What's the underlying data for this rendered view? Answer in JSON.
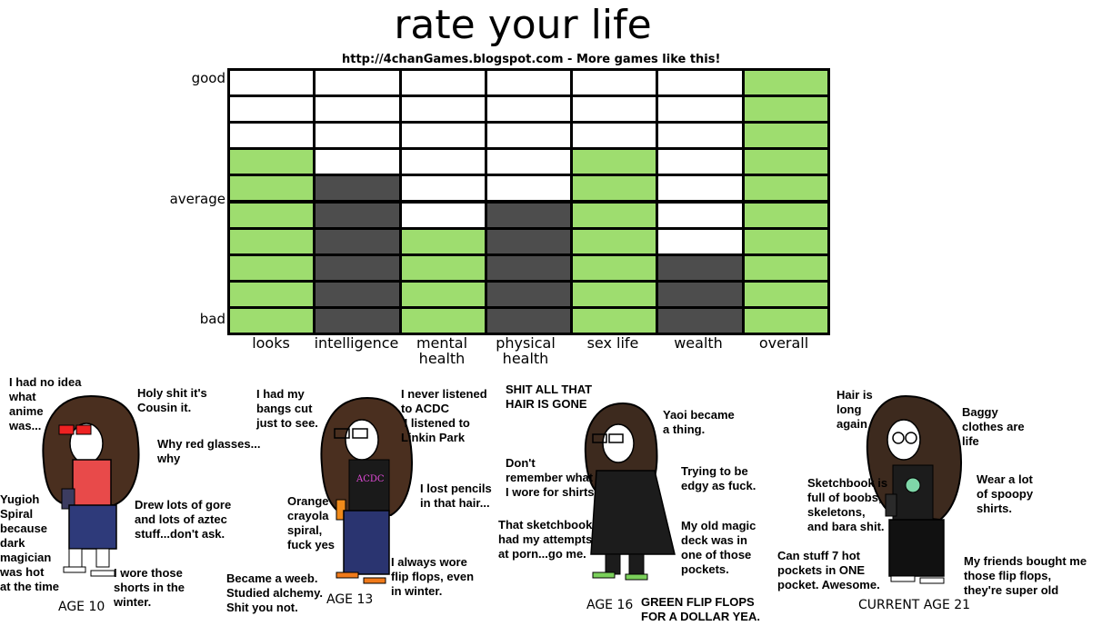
{
  "title": "rate your life",
  "subtitle": "http://4chanGames.blogspot.com - More games like this!",
  "colors": {
    "good": "#9edd6f",
    "bad": "#4d4d4d",
    "neutral": "#ffffff",
    "border": "#000000"
  },
  "chart_data": {
    "type": "heatmap",
    "title": "rate your life",
    "scale_labels": [
      "good",
      "average",
      "bad"
    ],
    "levels": 10,
    "categories": [
      "looks",
      "intelligence",
      "mental health",
      "physical health",
      "sex life",
      "wealth",
      "overall"
    ],
    "legend": {
      "green": "good",
      "dark gray": "bad",
      "white": "unfilled"
    },
    "columns": [
      {
        "name": "looks",
        "green": 7,
        "gray": 0
      },
      {
        "name": "intelligence",
        "green": 0,
        "gray": 6
      },
      {
        "name": "mental health",
        "green": 4,
        "gray": 0
      },
      {
        "name": "physical health",
        "green": 0,
        "gray": 5
      },
      {
        "name": "sex life",
        "green": 7,
        "gray": 0
      },
      {
        "name": "wealth",
        "green": 0,
        "gray": 3
      },
      {
        "name": "overall",
        "green": 10,
        "gray": 0
      }
    ]
  },
  "figures": [
    {
      "age_label": "AGE 10",
      "notes": [
        "I had no idea\nwhat\nanime\nwas...",
        "Holy shit it's\nCousin it.",
        "Why red glasses...\nwhy",
        "Drew lots of gore\nand lots of aztec\nstuff...don't ask.",
        "Yugioh\nSpiral\nbecause\ndark\nmagician\nwas hot\nat the time",
        "I wore those\nshorts in the\nwinter."
      ]
    },
    {
      "age_label": "AGE 13",
      "notes": [
        "I had my\nbangs cut\njust to see.",
        "I never listened\nto ACDC\n I listened to\nLinkin Park",
        "I lost pencils\nin that hair...",
        "Orange\ncrayola\nspiral,\nfuck yes",
        "Became a weeb.\nStudied alchemy.\nShit you not.",
        "I always wore\nflip flops, even\nin winter."
      ],
      "shirt_text": "ACDC"
    },
    {
      "age_label": "AGE 16",
      "notes": [
        "SHIT ALL THAT\nHAIR IS GONE",
        "Yaoi became\na thing.",
        "Don't\nremember what\nI wore for shirts",
        "Trying to be\nedgy as fuck.",
        "That sketchbook\nhad my attempts\nat porn...go me.",
        "My old magic\ndeck was in\none of those\npockets.",
        "GREEN FLIP FLOPS\nFOR A DOLLAR YEA."
      ]
    },
    {
      "age_label": "CURRENT AGE 21",
      "notes": [
        "Hair is\nlong\nagain",
        "Baggy\nclothes are\nlife",
        "Sketchbook is\nfull of boobs,\nskeletons,\nand bara shit.",
        "Wear a lot\nof spoopy\nshirts.",
        "Can stuff 7 hot\npockets in ONE\npocket. Awesome.",
        "My friends bought me\nthose flip flops,\nthey're super old"
      ]
    }
  ]
}
